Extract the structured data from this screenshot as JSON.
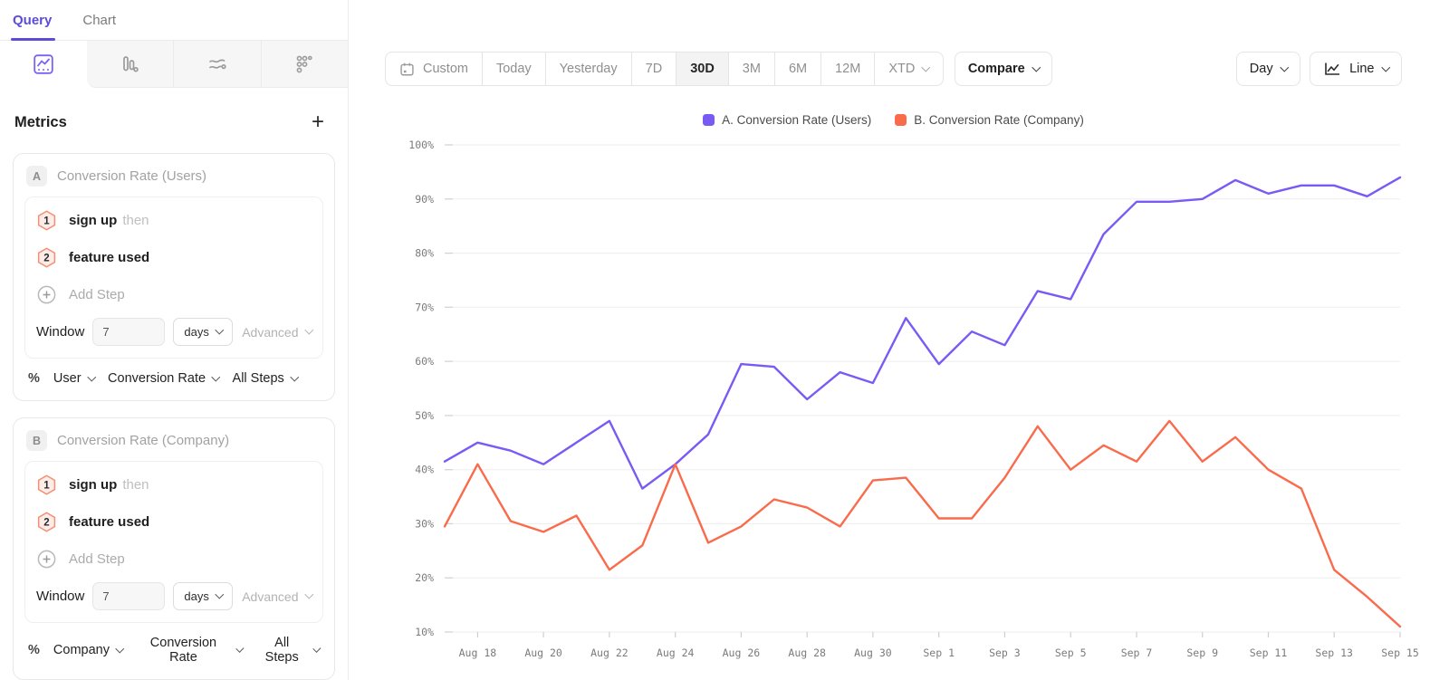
{
  "sidebar": {
    "tabs": [
      {
        "label": "Query",
        "active": true
      },
      {
        "label": "Chart",
        "active": false
      }
    ],
    "chart_type_icons": [
      {
        "name": "line-chart-icon",
        "active": true
      },
      {
        "name": "bar-chart-icon",
        "active": false
      },
      {
        "name": "flow-chart-icon",
        "active": false
      },
      {
        "name": "scatter-chart-icon",
        "active": false
      }
    ],
    "metrics": {
      "title": "Metrics",
      "add_label": "+",
      "cards": [
        {
          "badge": "A",
          "title": "Conversion Rate (Users)",
          "steps": [
            {
              "num": "1",
              "label": "sign up",
              "suffix": "then"
            },
            {
              "num": "2",
              "label": "feature used",
              "suffix": ""
            }
          ],
          "add_step_label": "Add Step",
          "window_label": "Window",
          "window_value": "7",
          "window_unit": "days",
          "advanced_label": "Advanced",
          "measure": {
            "symbol": "%",
            "entity": "User",
            "metric": "Conversion Rate",
            "steps": "All Steps"
          }
        },
        {
          "badge": "B",
          "title": "Conversion Rate (Company)",
          "steps": [
            {
              "num": "1",
              "label": "sign up",
              "suffix": "then"
            },
            {
              "num": "2",
              "label": "feature used",
              "suffix": ""
            }
          ],
          "add_step_label": "Add Step",
          "window_label": "Window",
          "window_value": "7",
          "window_unit": "days",
          "advanced_label": "Advanced",
          "measure": {
            "symbol": "%",
            "entity": "Company",
            "metric": "Conversion Rate",
            "steps": "All Steps"
          }
        }
      ]
    }
  },
  "toolbar": {
    "ranges": [
      {
        "label": "Custom",
        "icon": "calendar",
        "active": false
      },
      {
        "label": "Today",
        "active": false
      },
      {
        "label": "Yesterday",
        "active": false
      },
      {
        "label": "7D",
        "active": false
      },
      {
        "label": "30D",
        "active": true
      },
      {
        "label": "3M",
        "active": false
      },
      {
        "label": "6M",
        "active": false
      },
      {
        "label": "12M",
        "active": false
      },
      {
        "label": "XTD",
        "active": false,
        "chevron": true
      }
    ],
    "compare_label": "Compare",
    "granularity_label": "Day",
    "chart_style_label": "Line"
  },
  "colors": {
    "accent_purple": "#5b4cd9",
    "series_a_purple": "#7a5af5",
    "series_b_orange": "#f96b4b",
    "gridline": "#ededed",
    "axis_text": "#7b7b7b"
  },
  "chart_data": {
    "type": "line",
    "x": [
      "Aug 17",
      "Aug 18",
      "Aug 19",
      "Aug 20",
      "Aug 21",
      "Aug 22",
      "Aug 23",
      "Aug 24",
      "Aug 25",
      "Aug 26",
      "Aug 27",
      "Aug 28",
      "Aug 29",
      "Aug 30",
      "Aug 31",
      "Sep 1",
      "Sep 2",
      "Sep 3",
      "Sep 4",
      "Sep 5",
      "Sep 6",
      "Sep 7",
      "Sep 8",
      "Sep 9",
      "Sep 10",
      "Sep 11",
      "Sep 12",
      "Sep 13",
      "Sep 14",
      "Sep 15"
    ],
    "x_labels_every": 2,
    "series": [
      {
        "name": "A. Conversion Rate (Users)",
        "color": "#7a5af5",
        "values": [
          41.5,
          45,
          43.5,
          41,
          45,
          49,
          36.5,
          41,
          46.5,
          59.5,
          59,
          53,
          58,
          56,
          68,
          59.5,
          65.5,
          63,
          73,
          71.5,
          83.5,
          89.5,
          89.5,
          90,
          93.5,
          91,
          92.5,
          92.5,
          90.5,
          94
        ]
      },
      {
        "name": "B. Conversion Rate (Company)",
        "color": "#f96b4b",
        "values": [
          29.5,
          41,
          30.5,
          28.5,
          31.5,
          21.5,
          26,
          41,
          26.5,
          29.5,
          34.5,
          33,
          29.5,
          38,
          38.5,
          31,
          31,
          38.5,
          48,
          40,
          44.5,
          41.5,
          49,
          41.5,
          46,
          40,
          36.5,
          21.5,
          16.5,
          11
        ]
      }
    ],
    "ylim": [
      10,
      100
    ],
    "y_tick_step": 10,
    "y_tick_suffix": "%",
    "grid": true,
    "legend_position": "top"
  }
}
